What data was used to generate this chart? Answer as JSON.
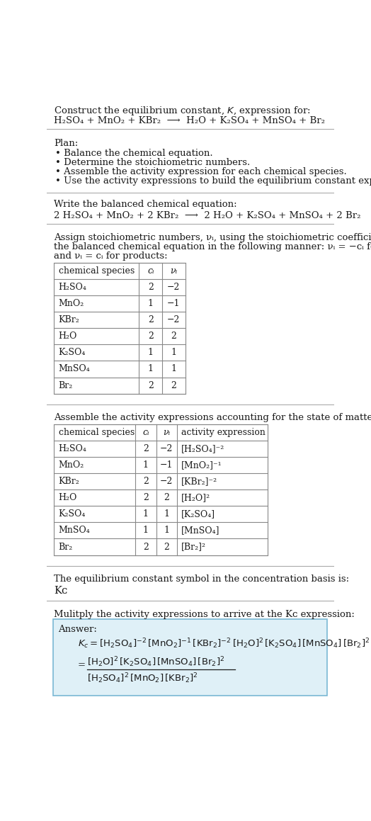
{
  "bg_color": "#ffffff",
  "text_color": "#1a1a1a",
  "table_text_color": "#1a1a1a",
  "title_line1": "Construct the equilibrium constant, $K$, expression for:",
  "title_line2_plain": "H₂SO₄ + MnO₂ + KBr₂  ⟶  H₂O + K₂SO₄ + MnSO₄ + Br₂",
  "plan_header": "Plan:",
  "plan_items": [
    "• Balance the chemical equation.",
    "• Determine the stoichiometric numbers.",
    "• Assemble the activity expression for each chemical species.",
    "• Use the activity expressions to build the equilibrium constant expression."
  ],
  "balanced_header": "Write the balanced chemical equation:",
  "balanced_eq": "2 H₂SO₄ + MnO₂ + 2 KBr₂  ⟶  2 H₂O + K₂SO₄ + MnSO₄ + 2 Br₂",
  "stoich_para": "Assign stoichiometric numbers, νᵢ, using the stoichiometric coefficients, cᵢ, from the balanced chemical equation in the following manner: νᵢ = −cᵢ for reactants and νᵢ = cᵢ for products:",
  "table1_headers": [
    "chemical species",
    "cᵢ",
    "νᵢ"
  ],
  "table1_data": [
    [
      "H₂SO₄",
      "2",
      "−2"
    ],
    [
      "MnO₂",
      "1",
      "−1"
    ],
    [
      "KBr₂",
      "2",
      "−2"
    ],
    [
      "H₂O",
      "2",
      "2"
    ],
    [
      "K₂SO₄",
      "1",
      "1"
    ],
    [
      "MnSO₄",
      "1",
      "1"
    ],
    [
      "Br₂",
      "2",
      "2"
    ]
  ],
  "activity_header": "Assemble the activity expressions accounting for the state of matter and νᵢ:",
  "table2_headers": [
    "chemical species",
    "cᵢ",
    "νᵢ",
    "activity expression"
  ],
  "table2_data": [
    [
      "H₂SO₄",
      "2",
      "−2",
      "[H₂SO₄]⁻²"
    ],
    [
      "MnO₂",
      "1",
      "−1",
      "[MnO₂]⁻¹"
    ],
    [
      "KBr₂",
      "2",
      "−2",
      "[KBr₂]⁻²"
    ],
    [
      "H₂O",
      "2",
      "2",
      "[H₂O]²"
    ],
    [
      "K₂SO₄",
      "1",
      "1",
      "[K₂SO₄]"
    ],
    [
      "MnSO₄",
      "1",
      "1",
      "[MnSO₄]"
    ],
    [
      "Br₂",
      "2",
      "2",
      "[Br₂]²"
    ]
  ],
  "kc_header": "The equilibrium constant symbol in the concentration basis is:",
  "kc_symbol": "Kᴄ",
  "multiply_header": "Mulitply the activity expressions to arrive at the Kᴄ expression:",
  "answer_label": "Answer:",
  "answer_box_color": "#dff0f7",
  "answer_box_border": "#7ab8d4",
  "table_border_color": "#888888",
  "separator_color": "#aaaaaa",
  "font_size": 9.5,
  "font_size_table": 9.0
}
